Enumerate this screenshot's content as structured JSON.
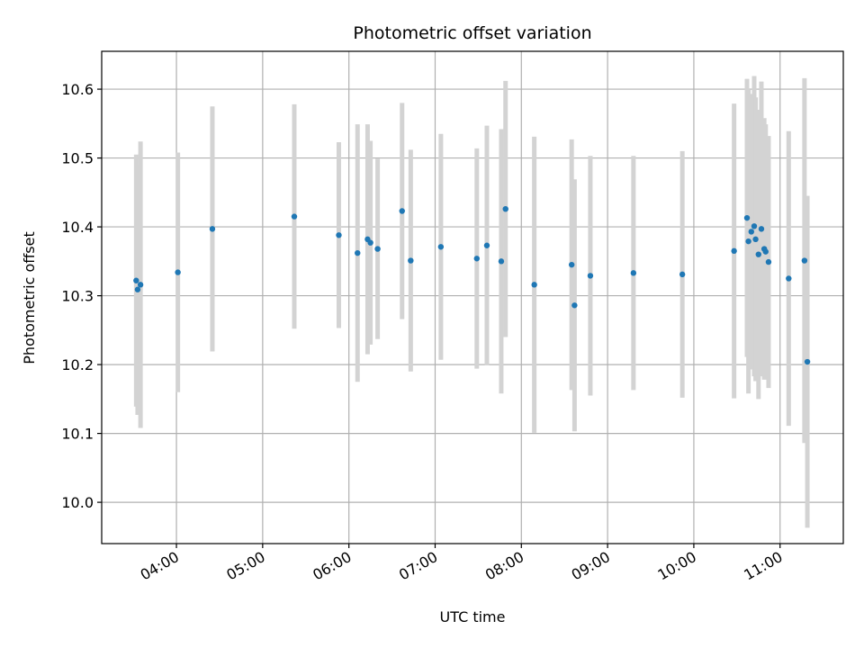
{
  "chart_data": {
    "type": "scatter",
    "title": "Photometric offset variation",
    "xlabel": "UTC time",
    "ylabel": "Photometric offset",
    "x_is_time": true,
    "xlim": [
      "03:08",
      "11:44"
    ],
    "ylim": [
      9.94,
      10.655
    ],
    "x_ticks": [
      "04:00",
      "05:00",
      "06:00",
      "07:00",
      "08:00",
      "09:00",
      "10:00",
      "11:00"
    ],
    "y_ticks": [
      10.0,
      10.1,
      10.2,
      10.3,
      10.4,
      10.5,
      10.6
    ],
    "grid": true,
    "point_color": "#1f77b4",
    "errorbar_color": "#d3d3d3",
    "points": [
      {
        "x": "03:32",
        "y": 10.322,
        "err": 0.183
      },
      {
        "x": "03:33",
        "y": 10.309,
        "err": 0.182
      },
      {
        "x": "03:35",
        "y": 10.316,
        "err": 0.208
      },
      {
        "x": "04:01",
        "y": 10.334,
        "err": 0.174
      },
      {
        "x": "04:25",
        "y": 10.397,
        "err": 0.178
      },
      {
        "x": "05:22",
        "y": 10.415,
        "err": 0.163
      },
      {
        "x": "05:53",
        "y": 10.388,
        "err": 0.135
      },
      {
        "x": "06:06",
        "y": 10.362,
        "err": 0.187
      },
      {
        "x": "06:13",
        "y": 10.382,
        "err": 0.167
      },
      {
        "x": "06:15",
        "y": 10.377,
        "err": 0.148
      },
      {
        "x": "06:20",
        "y": 10.368,
        "err": 0.131
      },
      {
        "x": "06:37",
        "y": 10.423,
        "err": 0.157
      },
      {
        "x": "06:43",
        "y": 10.351,
        "err": 0.161
      },
      {
        "x": "07:04",
        "y": 10.371,
        "err": 0.164
      },
      {
        "x": "07:29",
        "y": 10.354,
        "err": 0.16
      },
      {
        "x": "07:36",
        "y": 10.373,
        "err": 0.174
      },
      {
        "x": "07:46",
        "y": 10.35,
        "err": 0.192
      },
      {
        "x": "07:49",
        "y": 10.426,
        "err": 0.186
      },
      {
        "x": "08:09",
        "y": 10.316,
        "err": 0.215
      },
      {
        "x": "08:35",
        "y": 10.345,
        "err": 0.182
      },
      {
        "x": "08:37",
        "y": 10.286,
        "err": 0.183
      },
      {
        "x": "08:48",
        "y": 10.329,
        "err": 0.174
      },
      {
        "x": "09:18",
        "y": 10.333,
        "err": 0.17
      },
      {
        "x": "09:52",
        "y": 10.331,
        "err": 0.179
      },
      {
        "x": "10:28",
        "y": 10.365,
        "err": 0.214
      },
      {
        "x": "10:37",
        "y": 10.413,
        "err": 0.202
      },
      {
        "x": "10:38",
        "y": 10.379,
        "err": 0.221
      },
      {
        "x": "10:40",
        "y": 10.393,
        "err": 0.2
      },
      {
        "x": "10:42",
        "y": 10.401,
        "err": 0.218
      },
      {
        "x": "10:43",
        "y": 10.382,
        "err": 0.206
      },
      {
        "x": "10:45",
        "y": 10.36,
        "err": 0.21
      },
      {
        "x": "10:47",
        "y": 10.397,
        "err": 0.214
      },
      {
        "x": "10:49",
        "y": 10.368,
        "err": 0.19
      },
      {
        "x": "10:50",
        "y": 10.364,
        "err": 0.185
      },
      {
        "x": "10:52",
        "y": 10.349,
        "err": 0.183
      },
      {
        "x": "11:06",
        "y": 10.325,
        "err": 0.214
      },
      {
        "x": "11:17",
        "y": 10.351,
        "err": 0.265
      },
      {
        "x": "11:19",
        "y": 10.204,
        "err": 0.241
      }
    ]
  }
}
